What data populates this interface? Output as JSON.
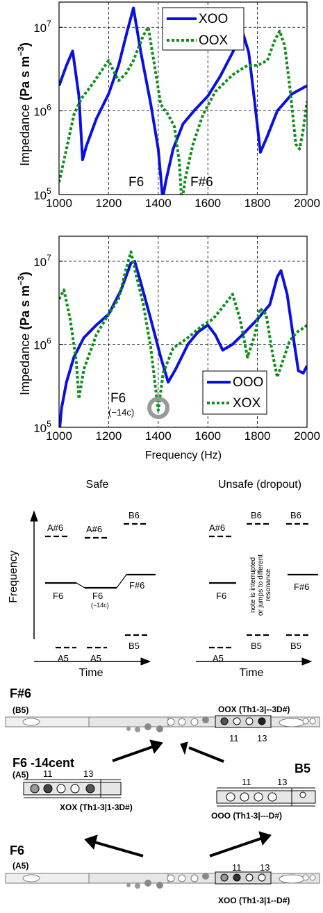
{
  "chart_data": [
    {
      "type": "line",
      "yscale": "log",
      "xlim": [
        1000,
        2000
      ],
      "ylim": [
        100000,
        20000000
      ],
      "xticks": [
        "1000",
        "1200",
        "1400",
        "1600",
        "1800",
        "2000"
      ],
      "ytick_base": "10",
      "ytick_exps": [
        "5",
        "6",
        "7"
      ],
      "ylabel_text": "Impedance ",
      "ylabel_unit": "(Pa s m",
      "ylabel_exp": "−3",
      "ylabel_close": ")",
      "grid": true,
      "legend_position": "top-center",
      "annotations": [
        "F6",
        "F#6"
      ],
      "series": [
        {
          "name": "XOO",
          "color": "#0a10e0",
          "style": "solid",
          "points": [
            [
              1000,
              2000000
            ],
            [
              1030,
              3500000
            ],
            [
              1055,
              5200000
            ],
            [
              1080,
              1500000
            ],
            [
              1095,
              260000
            ],
            [
              1110,
              380000
            ],
            [
              1150,
              800000
            ],
            [
              1200,
              1600000
            ],
            [
              1240,
              3500000
            ],
            [
              1275,
              9000000
            ],
            [
              1300,
              17000000
            ],
            [
              1330,
              5000000
            ],
            [
              1370,
              1200000
            ],
            [
              1400,
              350000
            ],
            [
              1418,
              90000
            ],
            [
              1432,
              150000
            ],
            [
              1460,
              350000
            ],
            [
              1500,
              700000
            ],
            [
              1550,
              1050000
            ],
            [
              1600,
              1500000
            ],
            [
              1650,
              2600000
            ],
            [
              1700,
              5000000
            ],
            [
              1740,
              8800000
            ],
            [
              1765,
              5000000
            ],
            [
              1790,
              1200000
            ],
            [
              1812,
              320000
            ],
            [
              1840,
              500000
            ],
            [
              1880,
              1000000
            ],
            [
              1940,
              1600000
            ],
            [
              2000,
              2000000
            ]
          ]
        },
        {
          "name": "OOX",
          "color": "#0e8f1a",
          "style": "dotted",
          "points": [
            [
              1000,
              140000
            ],
            [
              1030,
              350000
            ],
            [
              1060,
              900000
            ],
            [
              1090,
              1400000
            ],
            [
              1140,
              2200000
            ],
            [
              1180,
              3300000
            ],
            [
              1200,
              4000000
            ],
            [
              1220,
              3000000
            ],
            [
              1240,
              2300000
            ],
            [
              1270,
              2800000
            ],
            [
              1300,
              4000000
            ],
            [
              1340,
              8000000
            ],
            [
              1360,
              10000000
            ],
            [
              1385,
              3500000
            ],
            [
              1410,
              1200000
            ],
            [
              1440,
              900000
            ],
            [
              1465,
              650000
            ],
            [
              1485,
              250000
            ],
            [
              1495,
              80000
            ],
            [
              1510,
              160000
            ],
            [
              1540,
              400000
            ],
            [
              1580,
              900000
            ],
            [
              1630,
              1700000
            ],
            [
              1700,
              2700000
            ],
            [
              1760,
              3500000
            ],
            [
              1800,
              3500000
            ],
            [
              1840,
              4000000
            ],
            [
              1870,
              7000000
            ],
            [
              1890,
              9000000
            ],
            [
              1910,
              6000000
            ],
            [
              1930,
              2000000
            ],
            [
              1955,
              400000
            ],
            [
              1970,
              350000
            ],
            [
              1985,
              600000
            ],
            [
              2000,
              1300000
            ]
          ]
        }
      ]
    },
    {
      "type": "line",
      "yscale": "log",
      "xlim": [
        1000,
        2000
      ],
      "ylim": [
        100000,
        20000000
      ],
      "xticks": [
        "1000",
        "1200",
        "1400",
        "1600",
        "1800",
        "2000"
      ],
      "ytick_base": "10",
      "ytick_exps": [
        "5",
        "6",
        "7"
      ],
      "ylabel_text": "Impedance ",
      "ylabel_unit": "(Pa s m",
      "ylabel_exp": "−3",
      "ylabel_close": ")",
      "xlabel": "Frequency (Hz)",
      "grid": true,
      "legend_position": "bottom-right",
      "annotations": [
        "F6",
        "(−14c)"
      ],
      "series": [
        {
          "name": "OOO",
          "color": "#0a10e0",
          "style": "solid",
          "points": [
            [
              1000,
              80000
            ],
            [
              1010,
              170000
            ],
            [
              1030,
              350000
            ],
            [
              1060,
              700000
            ],
            [
              1100,
              1200000
            ],
            [
              1150,
              1700000
            ],
            [
              1200,
              2300000
            ],
            [
              1250,
              4500000
            ],
            [
              1290,
              9500000
            ],
            [
              1305,
              10000000
            ],
            [
              1330,
              5500000
            ],
            [
              1370,
              2000000
            ],
            [
              1410,
              700000
            ],
            [
              1440,
              350000
            ],
            [
              1470,
              500000
            ],
            [
              1520,
              1000000
            ],
            [
              1560,
              1400000
            ],
            [
              1600,
              1700000
            ],
            [
              1630,
              1300000
            ],
            [
              1660,
              850000
            ],
            [
              1700,
              1000000
            ],
            [
              1750,
              1400000
            ],
            [
              1800,
              2000000
            ],
            [
              1850,
              3000000
            ],
            [
              1880,
              6500000
            ],
            [
              1895,
              7700000
            ],
            [
              1920,
              4000000
            ],
            [
              1945,
              1200000
            ],
            [
              1965,
              480000
            ],
            [
              1985,
              450000
            ],
            [
              2000,
              550000
            ]
          ]
        },
        {
          "name": "XOX",
          "color": "#0e8f1a",
          "style": "dotted",
          "points": [
            [
              1000,
              3500000
            ],
            [
              1020,
              4500000
            ],
            [
              1045,
              2000000
            ],
            [
              1070,
              600000
            ],
            [
              1080,
              220000
            ],
            [
              1100,
              500000
            ],
            [
              1150,
              1300000
            ],
            [
              1200,
              2300000
            ],
            [
              1240,
              3500000
            ],
            [
              1270,
              8000000
            ],
            [
              1290,
              13000000
            ],
            [
              1310,
              7000000
            ],
            [
              1340,
              3000000
            ],
            [
              1370,
              900000
            ],
            [
              1400,
              160000
            ],
            [
              1420,
              450000
            ],
            [
              1460,
              900000
            ],
            [
              1520,
              1200000
            ],
            [
              1580,
              1700000
            ],
            [
              1620,
              2000000
            ],
            [
              1660,
              2800000
            ],
            [
              1700,
              4000000
            ],
            [
              1730,
              2000000
            ],
            [
              1760,
              700000
            ],
            [
              1790,
              1300000
            ],
            [
              1810,
              2700000
            ],
            [
              1835,
              2300000
            ],
            [
              1860,
              800000
            ],
            [
              1880,
              400000
            ],
            [
              1900,
              600000
            ],
            [
              1930,
              1100000
            ],
            [
              1960,
              1400000
            ],
            [
              1990,
              1600000
            ],
            [
              2000,
              1700000
            ]
          ]
        }
      ]
    }
  ],
  "schematic": {
    "safe_title": "Safe",
    "unsafe_title": "Unsafe (dropout)",
    "freq_axis_label": "Frequency",
    "time_axis_label": "Time",
    "safe_notes": [
      {
        "label": "A#6"
      },
      {
        "label": "A#6"
      },
      {
        "label": "B6"
      },
      {
        "label": "F6"
      },
      {
        "label": "F6"
      },
      {
        "label": "(−14c)"
      },
      {
        "label": "F#6"
      },
      {
        "label": "A5"
      },
      {
        "label": "A5"
      },
      {
        "label": "B5"
      }
    ],
    "unsafe_notes": [
      {
        "label": "A#6"
      },
      {
        "label": "B6"
      },
      {
        "label": "B6"
      },
      {
        "label": "F6"
      },
      {
        "label": "F#6"
      },
      {
        "label": "A5"
      },
      {
        "label": "B5"
      },
      {
        "label": "B5"
      }
    ],
    "dropout_text": [
      "note is interrupted",
      "or jumps to different",
      "resonance"
    ]
  },
  "fingering": {
    "top_note": "F#6",
    "top_sub": "(B5)",
    "top_label": "OOX (Th1-3|--3D#)",
    "top_nums": [
      "11",
      "13"
    ],
    "mid_left_note": "F6 -14cent",
    "mid_left_sub": "(A5)",
    "mid_left_label": "XOX (Th1-3|1-3D#)",
    "mid_left_nums": [
      "11",
      "13"
    ],
    "mid_right_note": "B5",
    "mid_right_label": "OOO (Th1-3|---D#)",
    "mid_right_nums": [
      "11",
      "13"
    ],
    "bottom_note": "F6",
    "bottom_sub": "(A5)",
    "bottom_label": "XOO (Th1-3|1--D#)",
    "bottom_nums": [
      "11",
      "13"
    ]
  }
}
